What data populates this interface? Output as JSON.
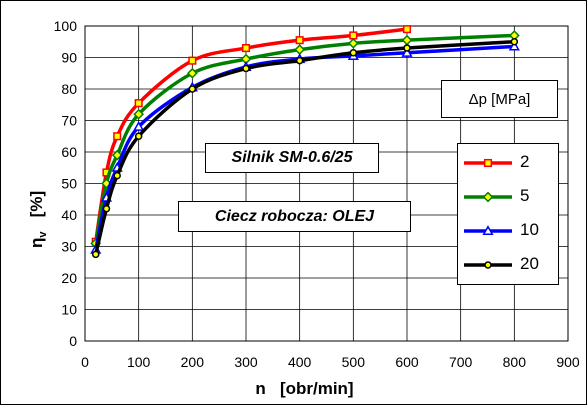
{
  "chart_data": {
    "type": "line",
    "xlabel": "n   [obr/min]",
    "ylabel_main": "η",
    "ylabel_sub": "v",
    "ylabel_unit": "[%]",
    "xlim": [
      0,
      900
    ],
    "ylim": [
      0,
      100
    ],
    "x_ticks": [
      0,
      100,
      200,
      300,
      400,
      500,
      600,
      700,
      800,
      900
    ],
    "y_ticks": [
      0,
      10,
      20,
      30,
      40,
      50,
      60,
      70,
      80,
      90,
      100
    ],
    "grid": true,
    "legend_title": "Δp [MPa]",
    "legend_position": "right",
    "annotations": [
      "Silnik SM-0.6/25",
      "Ciecz robocza: OLEJ"
    ],
    "series": [
      {
        "name": "2",
        "color": "#ff0000",
        "marker": "square",
        "x": [
          20,
          40,
          60,
          100,
          200,
          300,
          400,
          500,
          600
        ],
        "y": [
          31.5,
          53.5,
          65,
          75.5,
          89,
          93,
          95.5,
          97,
          99
        ]
      },
      {
        "name": "5",
        "color": "#008000",
        "marker": "diamond",
        "x": [
          20,
          40,
          60,
          100,
          200,
          300,
          400,
          500,
          600,
          800
        ],
        "y": [
          31,
          50,
          59,
          72,
          85,
          89.5,
          92.5,
          94.5,
          95.5,
          97
        ]
      },
      {
        "name": "10",
        "color": "#0000ff",
        "marker": "triangle",
        "x": [
          20,
          40,
          60,
          100,
          200,
          300,
          400,
          500,
          600,
          800
        ],
        "y": [
          29,
          45.5,
          55,
          68,
          80.5,
          87,
          89.5,
          90.5,
          91.5,
          93.5
        ]
      },
      {
        "name": "20",
        "color": "#000000",
        "marker": "circle",
        "x": [
          20,
          40,
          60,
          100,
          200,
          300,
          400,
          500,
          600,
          800
        ],
        "y": [
          27.5,
          42,
          52.5,
          65,
          80,
          86.5,
          89,
          91.5,
          93,
          95
        ]
      }
    ]
  }
}
